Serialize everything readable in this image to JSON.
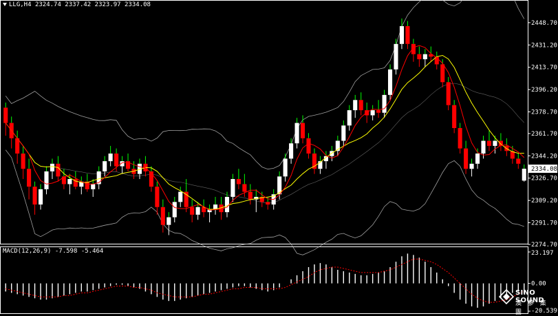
{
  "header": {
    "symbol": "LLG,H4",
    "open": "2324.74",
    "high": "2337.42",
    "low": "2323.97",
    "close": "2334.08"
  },
  "macd_header": {
    "label": "MACD(12,26,9)",
    "main": "-7.598",
    "signal": "-5.464"
  },
  "colors": {
    "bull": "#ffffff",
    "bear": "#ff0000",
    "upper_wick": "#00ff00",
    "ma_fast": "#ff0000",
    "ma_slow": "#ffff00",
    "bands": "#c8c8c8",
    "macd_signal": "#ff0000",
    "current_price_box": "#ffffff"
  },
  "logo": {
    "brand": "SINO SOUND",
    "cn": "澳 蔘 集 團"
  },
  "chart_data": [
    {
      "type": "candlestick",
      "name": "price",
      "ylim": [
        2274.7,
        2460
      ],
      "y_ticks": [
        2448.7,
        2431.2,
        2413.7,
        2396.2,
        2378.7,
        2361.7,
        2344.2,
        2326.7,
        2309.2,
        2291.7,
        2274.7
      ],
      "current_price": "2334.08",
      "candles": [
        [
          2382,
          2386,
          2360,
          2370
        ],
        [
          2370,
          2375,
          2350,
          2358
        ],
        [
          2358,
          2364,
          2338,
          2346
        ],
        [
          2346,
          2352,
          2326,
          2334
        ],
        [
          2334,
          2342,
          2310,
          2320
        ],
        [
          2320,
          2324,
          2298,
          2306
        ],
        [
          2306,
          2322,
          2302,
          2318
        ],
        [
          2318,
          2336,
          2314,
          2332
        ],
        [
          2332,
          2342,
          2326,
          2338
        ],
        [
          2338,
          2344,
          2324,
          2328
        ],
        [
          2328,
          2334,
          2318,
          2322
        ],
        [
          2322,
          2330,
          2314,
          2326
        ],
        [
          2326,
          2332,
          2318,
          2320
        ],
        [
          2320,
          2328,
          2314,
          2324
        ],
        [
          2324,
          2330,
          2316,
          2318
        ],
        [
          2318,
          2326,
          2312,
          2322
        ],
        [
          2322,
          2336,
          2318,
          2332
        ],
        [
          2332,
          2344,
          2328,
          2340
        ],
        [
          2340,
          2352,
          2336,
          2346
        ],
        [
          2346,
          2350,
          2332,
          2336
        ],
        [
          2336,
          2344,
          2330,
          2340
        ],
        [
          2340,
          2346,
          2332,
          2334
        ],
        [
          2334,
          2340,
          2326,
          2330
        ],
        [
          2330,
          2342,
          2326,
          2338
        ],
        [
          2338,
          2344,
          2328,
          2332
        ],
        [
          2332,
          2336,
          2316,
          2320
        ],
        [
          2320,
          2324,
          2298,
          2304
        ],
        [
          2304,
          2310,
          2284,
          2290
        ],
        [
          2290,
          2300,
          2282,
          2296
        ],
        [
          2296,
          2312,
          2292,
          2308
        ],
        [
          2308,
          2320,
          2304,
          2316
        ],
        [
          2316,
          2326,
          2300,
          2304
        ],
        [
          2304,
          2310,
          2292,
          2298
        ],
        [
          2298,
          2308,
          2294,
          2304
        ],
        [
          2304,
          2310,
          2296,
          2300
        ],
        [
          2300,
          2306,
          2292,
          2302
        ],
        [
          2302,
          2312,
          2298,
          2306
        ],
        [
          2306,
          2312,
          2294,
          2300
        ],
        [
          2300,
          2316,
          2296,
          2312
        ],
        [
          2312,
          2330,
          2308,
          2326
        ],
        [
          2326,
          2334,
          2318,
          2322
        ],
        [
          2322,
          2330,
          2312,
          2316
        ],
        [
          2316,
          2322,
          2306,
          2310
        ],
        [
          2310,
          2318,
          2300,
          2312
        ],
        [
          2312,
          2316,
          2304,
          2308
        ],
        [
          2308,
          2312,
          2302,
          2306
        ],
        [
          2306,
          2318,
          2302,
          2314
        ],
        [
          2314,
          2332,
          2310,
          2328
        ],
        [
          2328,
          2346,
          2324,
          2342
        ],
        [
          2342,
          2358,
          2338,
          2354
        ],
        [
          2354,
          2374,
          2350,
          2370
        ],
        [
          2370,
          2376,
          2354,
          2358
        ],
        [
          2358,
          2362,
          2342,
          2346
        ],
        [
          2346,
          2350,
          2330,
          2334
        ],
        [
          2334,
          2344,
          2330,
          2340
        ],
        [
          2340,
          2348,
          2334,
          2344
        ],
        [
          2344,
          2352,
          2340,
          2348
        ],
        [
          2348,
          2360,
          2344,
          2356
        ],
        [
          2356,
          2372,
          2352,
          2368
        ],
        [
          2368,
          2384,
          2364,
          2380
        ],
        [
          2380,
          2392,
          2374,
          2388
        ],
        [
          2388,
          2394,
          2376,
          2380
        ],
        [
          2380,
          2386,
          2370,
          2376
        ],
        [
          2376,
          2384,
          2372,
          2380
        ],
        [
          2380,
          2388,
          2374,
          2378
        ],
        [
          2378,
          2396,
          2374,
          2392
        ],
        [
          2392,
          2416,
          2388,
          2412
        ],
        [
          2412,
          2436,
          2408,
          2432
        ],
        [
          2432,
          2452,
          2428,
          2446
        ],
        [
          2446,
          2450,
          2428,
          2432
        ],
        [
          2432,
          2436,
          2418,
          2424
        ],
        [
          2424,
          2430,
          2414,
          2420
        ],
        [
          2420,
          2428,
          2414,
          2424
        ],
        [
          2424,
          2430,
          2418,
          2422
        ],
        [
          2422,
          2426,
          2412,
          2416
        ],
        [
          2416,
          2420,
          2398,
          2402
        ],
        [
          2402,
          2406,
          2380,
          2384
        ],
        [
          2384,
          2388,
          2362,
          2366
        ],
        [
          2366,
          2370,
          2346,
          2350
        ],
        [
          2350,
          2356,
          2330,
          2334
        ],
        [
          2334,
          2342,
          2328,
          2338
        ],
        [
          2338,
          2350,
          2334,
          2346
        ],
        [
          2346,
          2360,
          2342,
          2356
        ],
        [
          2356,
          2364,
          2348,
          2352
        ],
        [
          2352,
          2360,
          2346,
          2356
        ],
        [
          2356,
          2362,
          2348,
          2352
        ],
        [
          2352,
          2358,
          2344,
          2348
        ],
        [
          2348,
          2352,
          2338,
          2342
        ],
        [
          2342,
          2346,
          2334,
          2338
        ],
        [
          2324.74,
          2337.42,
          2323.97,
          2334.08
        ]
      ]
    },
    {
      "type": "bar",
      "name": "MACD",
      "params": "12,26,9",
      "main": -7.598,
      "signal_value": -5.464,
      "ylim": [
        -20.539,
        23.197
      ],
      "y_ticks": [
        23.197,
        0.0,
        -20.539
      ],
      "values": [
        -6,
        -7,
        -8,
        -9,
        -10,
        -11,
        -12,
        -12,
        -11,
        -10,
        -9,
        -8,
        -7,
        -6,
        -6,
        -5,
        -4,
        -3,
        -2,
        -1,
        -1,
        -2,
        -3,
        -4,
        -6,
        -8,
        -10,
        -12,
        -13,
        -13,
        -12,
        -11,
        -10,
        -9,
        -8,
        -7,
        -6,
        -5,
        -4,
        -3,
        -2,
        -2,
        -3,
        -4,
        -5,
        -6,
        -5,
        -3,
        0,
        3,
        6,
        9,
        12,
        14,
        15,
        14,
        12,
        10,
        9,
        8,
        7,
        6,
        6,
        7,
        8,
        9,
        12,
        16,
        20,
        22,
        21,
        19,
        16,
        12,
        8,
        3,
        -2,
        -7,
        -12,
        -15,
        -17,
        -18,
        -17,
        -15,
        -13,
        -11,
        -9,
        -7,
        -6,
        -7.6
      ],
      "signal": [
        -4,
        -5,
        -6,
        -7,
        -8,
        -9,
        -10,
        -10,
        -10,
        -10,
        -9,
        -9,
        -8,
        -7,
        -7,
        -6,
        -5,
        -4,
        -3,
        -2,
        -2,
        -2,
        -3,
        -3,
        -4,
        -5,
        -7,
        -8,
        -9,
        -10,
        -10,
        -10,
        -10,
        -9,
        -8,
        -8,
        -7,
        -6,
        -5,
        -4,
        -4,
        -3,
        -3,
        -3,
        -4,
        -4,
        -4,
        -4,
        -3,
        -1,
        1,
        3,
        5,
        8,
        10,
        11,
        12,
        12,
        11,
        10,
        9,
        8,
        8,
        8,
        8,
        9,
        10,
        12,
        14,
        16,
        18,
        18,
        17,
        16,
        14,
        11,
        8,
        4,
        0,
        -4,
        -8,
        -11,
        -13,
        -14,
        -14,
        -13,
        -12,
        -10,
        -8,
        -5.464
      ]
    }
  ]
}
